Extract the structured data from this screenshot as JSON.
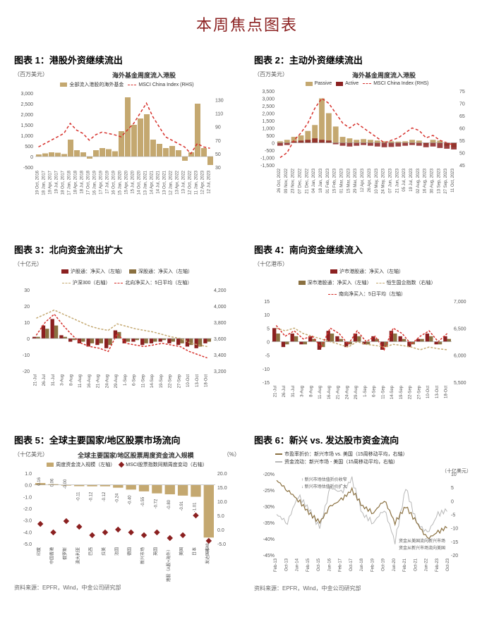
{
  "page_title": "本周焦点图表",
  "source1": "资料来源：EPFR，Wind，中金公司研究部",
  "source2": "资料来源：EPFR，Wind，中金公司研究部",
  "colors": {
    "maroon": "#8b2020",
    "tan": "#c4a870",
    "dark_tan": "#8a7040",
    "red_dash": "#d6302b",
    "grey": "#b8b8b8"
  },
  "chart1": {
    "title": "图表 1：港股外资继续流出",
    "subtitle": "海外基金周度流入港股",
    "ylabel": "（百万美元）",
    "legend": [
      {
        "label": "全部流入港股的海外基金",
        "color": "#c4a870",
        "type": "bar"
      },
      {
        "label": "MSCI China Index (RHS)",
        "color": "#d6302b",
        "type": "dash"
      }
    ],
    "ylim_l": [
      -500,
      3000
    ],
    "ytick_l": [
      -500,
      0,
      500,
      1000,
      1500,
      2000,
      2500,
      3000
    ],
    "ylim_r": [
      30,
      140
    ],
    "ytick_r": [
      30,
      50,
      70,
      90,
      110,
      130
    ],
    "x_labels": [
      "19 Oct, 2016",
      "18 Jan, 2017",
      "19 Apr, 2017",
      "19 Jul, 2017",
      "18 Oct, 2017",
      "17 Jan, 2018",
      "18 Apr, 2018",
      "18 Jul, 2018",
      "17 Oct, 2018",
      "16 Jan, 2019",
      "17 Apr, 2019",
      "17 Jul, 2019",
      "16 Oct, 2019",
      "15 Jan, 2020",
      "15 Apr, 2020",
      "15 Jul, 2020",
      "14 Oct, 2020",
      "13 Jan, 2021",
      "14 Apr, 2021",
      "14 Jul, 2021",
      "13 Oct, 2021",
      "12 Jan, 2022",
      "13 Apr, 2022",
      "13 Jul, 2022",
      "12 Oct, 2022",
      "11 Jan, 2023",
      "12 Apr, 2023",
      "12 Jul, 2023"
    ],
    "bars": [
      100,
      150,
      200,
      180,
      120,
      800,
      300,
      200,
      -100,
      300,
      400,
      350,
      250,
      1200,
      2800,
      1500,
      1800,
      2000,
      800,
      600,
      400,
      500,
      300,
      -200,
      200,
      2500,
      400,
      -400
    ],
    "line": [
      60,
      65,
      70,
      75,
      80,
      95,
      85,
      80,
      70,
      78,
      82,
      80,
      78,
      75,
      85,
      95,
      110,
      125,
      105,
      90,
      75,
      70,
      65,
      60,
      50,
      65,
      60,
      58
    ]
  },
  "chart2": {
    "title": "图表 2：主动外资继续流出",
    "subtitle": "海外基金周度流入港股",
    "ylabel": "（百万美元）",
    "legend": [
      {
        "label": "Passive",
        "color": "#c4a870",
        "type": "bar"
      },
      {
        "label": "Active",
        "color": "#8b2020",
        "type": "bar"
      },
      {
        "label": "MSCI China Index (RHS)",
        "color": "#d6302b",
        "type": "dash"
      }
    ],
    "ylim_l": [
      -1500,
      3500
    ],
    "ytick_l_labels": [
      "-1,500",
      "-1,000",
      "-500",
      "0",
      "500",
      "1,000",
      "1,500",
      "2,000",
      "2,500",
      "3,000",
      "3,500"
    ],
    "ylim_r": [
      45,
      75
    ],
    "ytick_r": [
      45,
      50,
      55,
      60,
      65,
      70,
      75
    ],
    "x_labels": [
      "26 Oct, 2022",
      "09 Nov, 2022",
      "23 Nov, 2022",
      "07 Dec, 2022",
      "21 Dec, 2022",
      "04 Jan, 2023",
      "18 Jan, 2023",
      "01 Feb, 2023",
      "15 Feb, 2023",
      "01 Mar, 2023",
      "15 Mar, 2023",
      "29 Mar, 2023",
      "12 Apr, 2023",
      "26 Apr, 2023",
      "10 May, 2023",
      "24 May, 2023",
      "07 Jun, 2023",
      "21 Jun, 2023",
      "05 Jul, 2023",
      "19 Jul, 2023",
      "02 Aug, 2023",
      "16 Aug, 2023",
      "30 Aug, 2023",
      "13 Sep, 2023",
      "27 Sep, 2023",
      "11 Oct, 2023"
    ],
    "passive": [
      100,
      200,
      400,
      500,
      800,
      1200,
      3000,
      2000,
      1100,
      400,
      300,
      200,
      250,
      200,
      150,
      100,
      100,
      80,
      100,
      200,
      150,
      -100,
      200,
      150,
      -200,
      -300
    ],
    "active": [
      -200,
      -150,
      100,
      150,
      200,
      300,
      200,
      150,
      -100,
      -200,
      -250,
      -200,
      -150,
      -200,
      -250,
      -300,
      -280,
      -250,
      -200,
      -150,
      -200,
      -300,
      -250,
      -350,
      -400,
      -450
    ],
    "line": [
      48,
      50,
      55,
      58,
      62,
      68,
      72,
      70,
      66,
      62,
      60,
      62,
      60,
      58,
      56,
      54,
      55,
      56,
      58,
      60,
      59,
      56,
      57,
      55,
      54,
      53
    ]
  },
  "chart3": {
    "title": "图表 3：北向资金流出扩大",
    "ylabel_l": "（十亿元）",
    "legend": [
      {
        "label": "沪股通：净买入（左轴）",
        "color": "#8b2020",
        "type": "bar"
      },
      {
        "label": "深股通：净买入（左轴）",
        "color": "#8a7040",
        "type": "bar"
      },
      {
        "label": "沪深300（右轴）",
        "color": "#c4a870",
        "type": "dash"
      },
      {
        "label": "北向净买入：5日平均（左轴）",
        "color": "#d6302b",
        "type": "dash"
      }
    ],
    "ylim_l": [
      -20,
      30
    ],
    "ytick_l": [
      -20,
      -10,
      0,
      10,
      20,
      30
    ],
    "ylim_r": [
      3200,
      4200
    ],
    "ytick_r_labels": [
      "3,200",
      "3,400",
      "3,600",
      "3,800",
      "4,000",
      "4,200"
    ],
    "x_labels": [
      "21-Jul",
      "26-Jul",
      "31-Jul",
      "3-Aug",
      "8-Aug",
      "11-Aug",
      "16-Aug",
      "21-Aug",
      "24-Aug",
      "29-Aug",
      "1-Sep",
      "6-Sep",
      "11-Sep",
      "14-Sep",
      "19-Sep",
      "22-Sep",
      "27-Sep",
      "10-Oct",
      "13-Oct",
      "18-Oct"
    ],
    "hu": [
      1,
      8,
      12,
      2,
      -2,
      -3,
      -5,
      -4,
      -6,
      5,
      -3,
      -2,
      -4,
      -3,
      -2,
      -3,
      -4,
      -5,
      -6,
      -3
    ],
    "shen": [
      1,
      6,
      8,
      1,
      -1,
      -2,
      -3,
      -3,
      -4,
      4,
      -2,
      -1,
      -3,
      -2,
      -1,
      -2,
      -3,
      -4,
      -5,
      -2
    ],
    "csi300": [
      3850,
      3900,
      3950,
      3900,
      3850,
      3800,
      3750,
      3720,
      3700,
      3780,
      3750,
      3720,
      3700,
      3680,
      3650,
      3620,
      3600,
      3550,
      3520,
      3500
    ],
    "avg5": [
      2,
      10,
      15,
      8,
      2,
      -3,
      -5,
      -6,
      -8,
      3,
      -3,
      -4,
      -5,
      -4,
      -3,
      -4,
      -5,
      -8,
      -10,
      -12
    ]
  },
  "chart4": {
    "title": "图表 4：南向资金继续流入",
    "ylabel_l": "（十亿港币）",
    "legend": [
      {
        "label": "沪市港股通：净买入（左轴）",
        "color": "#8b2020",
        "type": "bar"
      },
      {
        "label": "深市港股通：净买入（左轴）",
        "color": "#8a7040",
        "type": "bar"
      },
      {
        "label": "恒生国企指数（右轴）",
        "color": "#c4a870",
        "type": "dash"
      },
      {
        "label": "南向净买入：5日平均（左轴）",
        "color": "#d6302b",
        "type": "dash"
      }
    ],
    "ylim_l": [
      -15,
      15
    ],
    "ytick_l": [
      -15,
      -10,
      -5,
      0,
      5,
      10,
      15
    ],
    "ylim_r": [
      5500,
      7000
    ],
    "ytick_r_labels": [
      "5,500",
      "6,000",
      "6,500",
      "7,000"
    ],
    "x_labels": [
      "21-Jul",
      "26-Jul",
      "31-Jul",
      "3-Aug",
      "8-Aug",
      "11-Aug",
      "16-Aug",
      "21-Aug",
      "24-Aug",
      "29-Aug",
      "1-Sep",
      "6-Sep",
      "11-Sep",
      "14-Sep",
      "19-Sep",
      "22-Sep",
      "27-Sep",
      "10-Oct",
      "13-Oct",
      "18-Oct"
    ],
    "hu": [
      5,
      -2,
      3,
      -1,
      2,
      -3,
      4,
      2,
      -2,
      3,
      -1,
      2,
      -3,
      4,
      2,
      -2,
      1,
      3,
      -1,
      2
    ],
    "shen": [
      3,
      -1,
      2,
      -1,
      1,
      -2,
      3,
      1,
      -1,
      2,
      -1,
      1,
      -2,
      3,
      1,
      -1,
      1,
      2,
      -1,
      1
    ],
    "hsi": [
      6500,
      6450,
      6500,
      6400,
      6350,
      6300,
      6250,
      6200,
      6150,
      6250,
      6200,
      6180,
      6150,
      6200,
      6180,
      6150,
      6100,
      6150,
      6120,
      6100
    ],
    "avg5": [
      6,
      2,
      4,
      1,
      2,
      -2,
      5,
      3,
      -1,
      4,
      0,
      2,
      -3,
      5,
      3,
      -1,
      2,
      4,
      0,
      3
    ]
  },
  "chart5": {
    "title": "图表 5：全球主要国家/地区股票市场流向",
    "subtitle": "全球主要国家/地区股票周度资金流入规模",
    "ylabel_l": "（十亿美元）",
    "ylabel_r": "（%）",
    "legend": [
      {
        "label": "周度资金流入规模（左轴）",
        "color": "#c4a870",
        "type": "bar"
      },
      {
        "label": "MSCI股票指数同期周度变动（右轴）",
        "color": "#8b2020",
        "type": "diamond"
      }
    ],
    "ylim_l": [
      -5.0,
      1.0
    ],
    "ytick_l": [
      "-5.0",
      "-4.0",
      "-3.0",
      "-2.0",
      "-1.0",
      "0.0",
      "1.0"
    ],
    "ylim_r": [
      -5.0,
      20.0
    ],
    "ytick_r": [
      "-5.0",
      "0.0",
      "5.0",
      "10.0",
      "15.0",
      "20.0"
    ],
    "categories": [
      "印度",
      "中国香港",
      "俄罗斯",
      "澳大利亚",
      "巴西",
      "拉美",
      "法国",
      "德国",
      "新兴市场",
      "英国",
      "中港股（A股+海外）",
      "美国",
      "日本",
      "发达国家"
    ],
    "bars": [
      0.16,
      0.06,
      -0.0,
      -0.11,
      -0.12,
      -0.12,
      -0.24,
      -0.4,
      -0.55,
      -0.72,
      -0.8,
      -0.91,
      -1.01,
      -4.48
    ],
    "diamonds": [
      2,
      -1,
      3,
      1,
      -2,
      -1,
      0,
      -1,
      -2,
      -1,
      -3,
      -2,
      5,
      -4
    ],
    "bar_labels": [
      "0.16",
      "0.06",
      "-0.00",
      "-0.11",
      "-0.12",
      "-0.12",
      "-0.24",
      "-0.40",
      "-0.55",
      "-0.72",
      "-0.80",
      "-0.91",
      "-1.01",
      "-4.48"
    ]
  },
  "chart6": {
    "title": "图表 6：新兴 vs. 发达股市资金流向",
    "ylabel_r": "（十亿美元）",
    "legend": [
      {
        "label": "市盈率折价：新兴市场 vs. 美国（15周移动平均，右轴）",
        "color": "#8a7040",
        "type": "line"
      },
      {
        "label": "资金流动：新兴市场 - 美国（15周移动平均，右轴）",
        "color": "#b8b8b8",
        "type": "line"
      }
    ],
    "annotations": [
      "新兴市场估值折价收窄",
      "新兴市场估值折价扩大",
      "资金从美国流向新兴市场",
      "资金从新兴市场流向美国"
    ],
    "ylim_l": [
      -45,
      -20
    ],
    "ytick_l": [
      "-45%",
      "-40%",
      "-35%",
      "-30%",
      "-25%",
      "-20%"
    ],
    "ylim_r": [
      -20,
      10
    ],
    "ytick_r": [
      -20,
      -15,
      -10,
      -5,
      0,
      5,
      10
    ],
    "x_labels": [
      "Feb-13",
      "Oct-13",
      "Jun-14",
      "Feb-15",
      "Oct-15",
      "Jun-16",
      "Feb-17",
      "Oct-17",
      "Jun-18",
      "Feb-19",
      "Oct-19",
      "Jun-20",
      "Feb-21",
      "Oct-21",
      "Jun-22",
      "Feb-23",
      "Oct-23"
    ],
    "line1": [
      -22,
      -25,
      -28,
      -32,
      -35,
      -30,
      -28,
      -25,
      -30,
      -32,
      -28,
      -35,
      -30,
      -35,
      -40,
      -38,
      -36
    ],
    "line2": [
      -5,
      -8,
      2,
      -3,
      -10,
      5,
      3,
      8,
      -5,
      -8,
      -3,
      -15,
      5,
      -8,
      -12,
      -5,
      -3
    ]
  }
}
